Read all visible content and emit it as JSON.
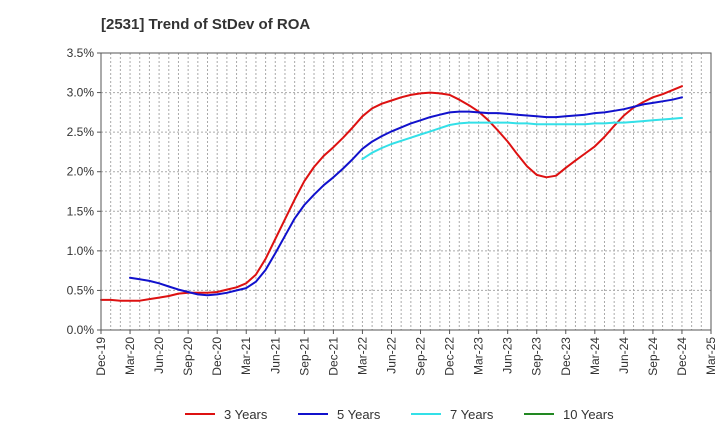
{
  "chart_data": {
    "type": "line",
    "title": "[2531]  Trend of StDev of ROA",
    "xlabel": "",
    "ylabel": "",
    "x_ticks": [
      "Dec-19",
      "Mar-20",
      "Jun-20",
      "Sep-20",
      "Dec-20",
      "Mar-21",
      "Jun-21",
      "Sep-21",
      "Dec-21",
      "Mar-22",
      "Jun-22",
      "Sep-22",
      "Dec-22",
      "Mar-23",
      "Jun-23",
      "Sep-23",
      "Dec-23",
      "Mar-24",
      "Jun-24",
      "Sep-24",
      "Dec-24",
      "Mar-25"
    ],
    "y_ticks": [
      "0.0%",
      "0.5%",
      "1.0%",
      "1.5%",
      "2.0%",
      "2.5%",
      "3.0%",
      "3.5%"
    ],
    "ylim": [
      0,
      3.5
    ],
    "y_unit": "%",
    "grid": true,
    "legend_position": "bottom",
    "series": [
      {
        "name": "3 Years",
        "color": "#dd1111",
        "points": [
          [
            "Dec-19",
            0.38
          ],
          [
            "Jan-20",
            0.38
          ],
          [
            "Feb-20",
            0.37
          ],
          [
            "Mar-20",
            0.37
          ],
          [
            "Apr-20",
            0.37
          ],
          [
            "May-20",
            0.39
          ],
          [
            "Jun-20",
            0.41
          ],
          [
            "Jul-20",
            0.43
          ],
          [
            "Aug-20",
            0.46
          ],
          [
            "Sep-20",
            0.47
          ],
          [
            "Oct-20",
            0.47
          ],
          [
            "Nov-20",
            0.47
          ],
          [
            "Dec-20",
            0.48
          ],
          [
            "Jan-21",
            0.51
          ],
          [
            "Feb-21",
            0.54
          ],
          [
            "Mar-21",
            0.59
          ],
          [
            "Apr-21",
            0.7
          ],
          [
            "May-21",
            0.9
          ],
          [
            "Jun-21",
            1.15
          ],
          [
            "Jul-21",
            1.4
          ],
          [
            "Aug-21",
            1.65
          ],
          [
            "Sep-21",
            1.88
          ],
          [
            "Oct-21",
            2.06
          ],
          [
            "Nov-21",
            2.2
          ],
          [
            "Dec-21",
            2.31
          ],
          [
            "Jan-22",
            2.43
          ],
          [
            "Feb-22",
            2.56
          ],
          [
            "Mar-22",
            2.7
          ],
          [
            "Apr-22",
            2.8
          ],
          [
            "May-22",
            2.86
          ],
          [
            "Jun-22",
            2.9
          ],
          [
            "Jul-22",
            2.94
          ],
          [
            "Aug-22",
            2.97
          ],
          [
            "Sep-22",
            2.99
          ],
          [
            "Oct-22",
            3.0
          ],
          [
            "Nov-22",
            2.99
          ],
          [
            "Dec-22",
            2.97
          ],
          [
            "Jan-23",
            2.91
          ],
          [
            "Feb-23",
            2.84
          ],
          [
            "Mar-23",
            2.76
          ],
          [
            "Apr-23",
            2.65
          ],
          [
            "May-23",
            2.52
          ],
          [
            "Jun-23",
            2.38
          ],
          [
            "Jul-23",
            2.22
          ],
          [
            "Aug-23",
            2.07
          ],
          [
            "Sep-23",
            1.96
          ],
          [
            "Oct-23",
            1.93
          ],
          [
            "Nov-23",
            1.95
          ],
          [
            "Dec-23",
            2.05
          ],
          [
            "Jan-24",
            2.14
          ],
          [
            "Feb-24",
            2.23
          ],
          [
            "Mar-24",
            2.32
          ],
          [
            "Apr-24",
            2.44
          ],
          [
            "May-24",
            2.58
          ],
          [
            "Jun-24",
            2.71
          ],
          [
            "Jul-24",
            2.81
          ],
          [
            "Aug-24",
            2.88
          ],
          [
            "Sep-24",
            2.94
          ],
          [
            "Oct-24",
            2.98
          ],
          [
            "Nov-24",
            3.03
          ],
          [
            "Dec-24",
            3.08
          ]
        ]
      },
      {
        "name": "5 Years",
        "color": "#1111cc",
        "points": [
          [
            "Mar-20",
            0.66
          ],
          [
            "Apr-20",
            0.64
          ],
          [
            "May-20",
            0.62
          ],
          [
            "Jun-20",
            0.59
          ],
          [
            "Jul-20",
            0.55
          ],
          [
            "Aug-20",
            0.51
          ],
          [
            "Sep-20",
            0.48
          ],
          [
            "Oct-20",
            0.45
          ],
          [
            "Nov-20",
            0.44
          ],
          [
            "Dec-20",
            0.45
          ],
          [
            "Jan-21",
            0.47
          ],
          [
            "Feb-21",
            0.5
          ],
          [
            "Mar-21",
            0.53
          ],
          [
            "Apr-21",
            0.61
          ],
          [
            "May-21",
            0.76
          ],
          [
            "Jun-21",
            0.97
          ],
          [
            "Jul-21",
            1.19
          ],
          [
            "Aug-21",
            1.41
          ],
          [
            "Sep-21",
            1.58
          ],
          [
            "Oct-21",
            1.71
          ],
          [
            "Nov-21",
            1.83
          ],
          [
            "Dec-21",
            1.93
          ],
          [
            "Jan-22",
            2.04
          ],
          [
            "Feb-22",
            2.16
          ],
          [
            "Mar-22",
            2.29
          ],
          [
            "Apr-22",
            2.38
          ],
          [
            "May-22",
            2.45
          ],
          [
            "Jun-22",
            2.51
          ],
          [
            "Jul-22",
            2.56
          ],
          [
            "Aug-22",
            2.61
          ],
          [
            "Sep-22",
            2.65
          ],
          [
            "Oct-22",
            2.69
          ],
          [
            "Nov-22",
            2.72
          ],
          [
            "Dec-22",
            2.75
          ],
          [
            "Jan-23",
            2.76
          ],
          [
            "Feb-23",
            2.76
          ],
          [
            "Mar-23",
            2.75
          ],
          [
            "Apr-23",
            2.74
          ],
          [
            "May-23",
            2.74
          ],
          [
            "Jun-23",
            2.73
          ],
          [
            "Jul-23",
            2.72
          ],
          [
            "Aug-23",
            2.71
          ],
          [
            "Sep-23",
            2.7
          ],
          [
            "Oct-23",
            2.69
          ],
          [
            "Nov-23",
            2.69
          ],
          [
            "Dec-23",
            2.7
          ],
          [
            "Jan-24",
            2.71
          ],
          [
            "Feb-24",
            2.72
          ],
          [
            "Mar-24",
            2.74
          ],
          [
            "Apr-24",
            2.75
          ],
          [
            "May-24",
            2.77
          ],
          [
            "Jun-24",
            2.79
          ],
          [
            "Jul-24",
            2.82
          ],
          [
            "Aug-24",
            2.85
          ],
          [
            "Sep-24",
            2.87
          ],
          [
            "Oct-24",
            2.89
          ],
          [
            "Nov-24",
            2.91
          ],
          [
            "Dec-24",
            2.94
          ]
        ]
      },
      {
        "name": "7 Years",
        "color": "#33e0e8",
        "points": [
          [
            "Mar-22",
            2.16
          ],
          [
            "Apr-22",
            2.24
          ],
          [
            "May-22",
            2.3
          ],
          [
            "Jun-22",
            2.35
          ],
          [
            "Jul-22",
            2.39
          ],
          [
            "Aug-22",
            2.43
          ],
          [
            "Sep-22",
            2.47
          ],
          [
            "Oct-22",
            2.51
          ],
          [
            "Nov-22",
            2.55
          ],
          [
            "Dec-22",
            2.59
          ],
          [
            "Jan-23",
            2.61
          ],
          [
            "Feb-23",
            2.62
          ],
          [
            "Mar-23",
            2.62
          ],
          [
            "Apr-23",
            2.62
          ],
          [
            "May-23",
            2.62
          ],
          [
            "Jun-23",
            2.62
          ],
          [
            "Jul-23",
            2.61
          ],
          [
            "Aug-23",
            2.61
          ],
          [
            "Sep-23",
            2.6
          ],
          [
            "Oct-23",
            2.6
          ],
          [
            "Nov-23",
            2.6
          ],
          [
            "Dec-23",
            2.6
          ],
          [
            "Jan-24",
            2.6
          ],
          [
            "Feb-24",
            2.6
          ],
          [
            "Mar-24",
            2.61
          ],
          [
            "Apr-24",
            2.61
          ],
          [
            "May-24",
            2.62
          ],
          [
            "Jun-24",
            2.62
          ],
          [
            "Jul-24",
            2.63
          ],
          [
            "Aug-24",
            2.64
          ],
          [
            "Sep-24",
            2.65
          ],
          [
            "Oct-24",
            2.66
          ],
          [
            "Nov-24",
            2.67
          ],
          [
            "Dec-24",
            2.68
          ]
        ]
      },
      {
        "name": "10 Years",
        "color": "#228822",
        "points": []
      }
    ]
  }
}
